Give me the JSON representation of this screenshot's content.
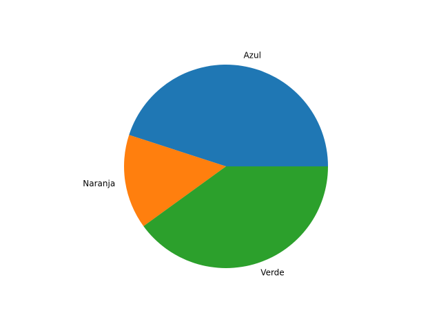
{
  "chart_data": {
    "type": "pie",
    "labels": [
      "Azul",
      "Naranja",
      "Verde"
    ],
    "values": [
      45,
      15,
      40
    ],
    "colors": [
      "#1f77b4",
      "#ff7f0e",
      "#2ca02c"
    ],
    "start_angle_deg": 0,
    "direction": "counterclockwise",
    "title": ""
  }
}
